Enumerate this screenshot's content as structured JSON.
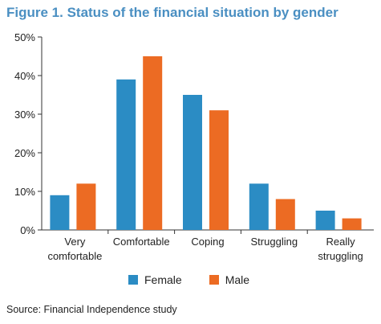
{
  "title": "Figure 1. Status of the financial situation by gender",
  "source": "Source: Financial Independence study",
  "colors": {
    "title": "#4a8fc2",
    "female": "#2b8cc4",
    "male": "#ec6b23",
    "axis": "#333333"
  },
  "chart_data": {
    "type": "bar",
    "categories": [
      [
        "Very",
        "comfortable"
      ],
      [
        "Comfortable"
      ],
      [
        "Coping"
      ],
      [
        "Struggling"
      ],
      [
        "Really",
        "struggling"
      ]
    ],
    "series": [
      {
        "name": "Female",
        "values": [
          9,
          39,
          35,
          12,
          5
        ]
      },
      {
        "name": "Male",
        "values": [
          12,
          45,
          31,
          8,
          3
        ]
      }
    ],
    "yticks": [
      "0%",
      "10%",
      "20%",
      "30%",
      "40%",
      "50%"
    ],
    "ylim": [
      0,
      50
    ],
    "grid": false,
    "legend_position": "bottom"
  }
}
